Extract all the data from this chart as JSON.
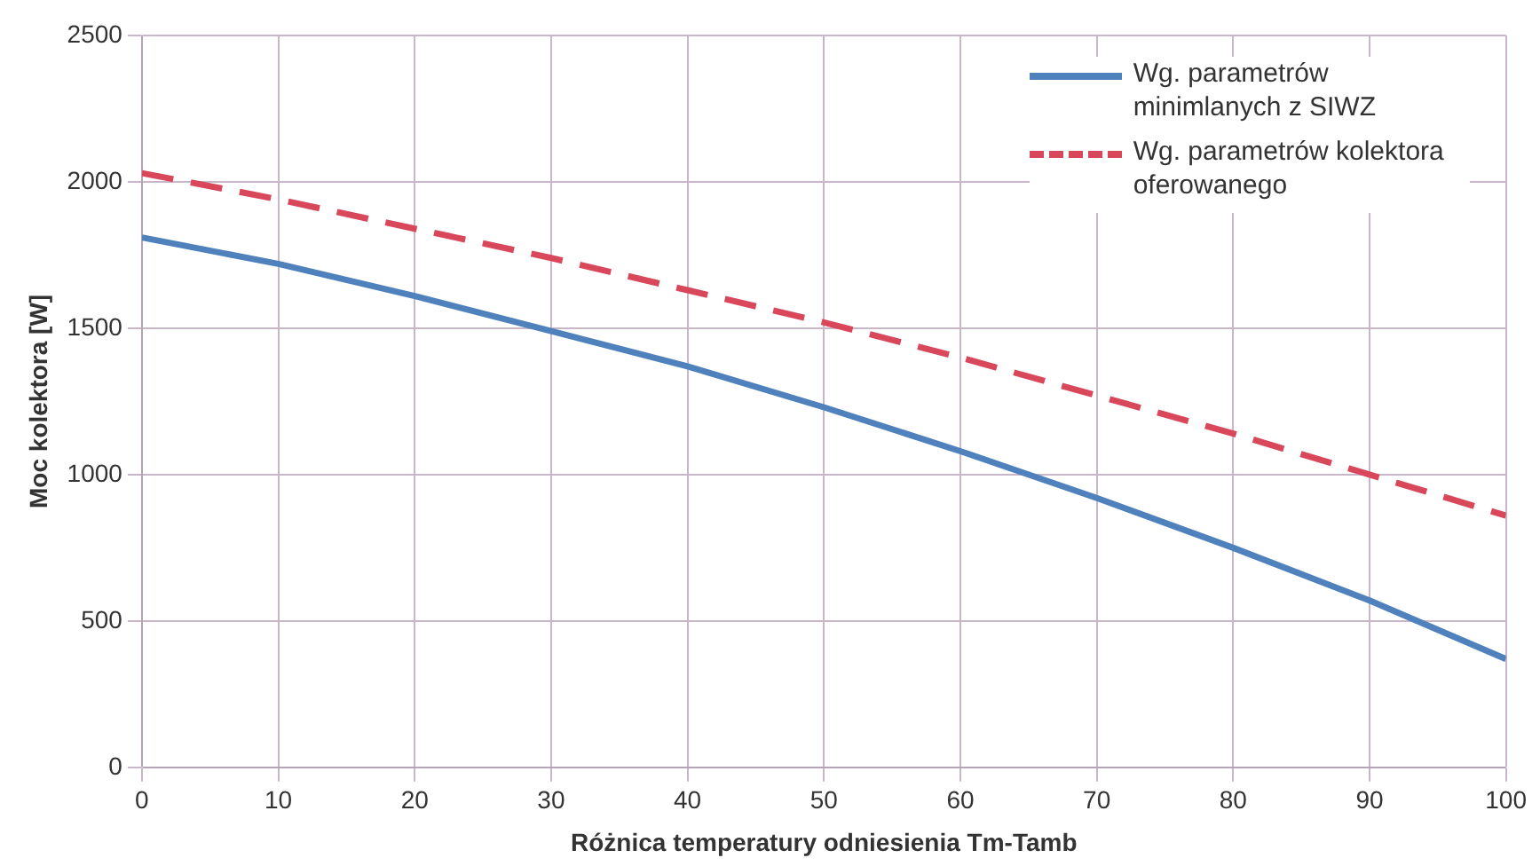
{
  "chart_data": {
    "type": "line",
    "xlabel": "Różnica temperatury odniesienia Tm-Tamb",
    "ylabel": "Moc kolektora [W]",
    "x": [
      0,
      10,
      20,
      30,
      40,
      50,
      60,
      70,
      80,
      90,
      100
    ],
    "series": [
      {
        "name": "Wg. parametrów minimlanych z SIWZ",
        "color": "#4f81bd",
        "line_style": "solid",
        "values": [
          1810,
          1720,
          1610,
          1490,
          1370,
          1230,
          1080,
          920,
          750,
          570,
          370
        ]
      },
      {
        "name": "Wg. parametrów kolektora oferowanego",
        "color": "#d9475b",
        "line_style": "dashed",
        "values": [
          2030,
          1940,
          1840,
          1740,
          1630,
          1520,
          1400,
          1270,
          1140,
          1000,
          860
        ]
      }
    ],
    "xlim": [
      0,
      100
    ],
    "xticks": [
      0,
      10,
      20,
      30,
      40,
      50,
      60,
      70,
      80,
      90,
      100
    ],
    "ylim": [
      0,
      2500
    ],
    "yticks": [
      0,
      500,
      1000,
      1500,
      2000,
      2500
    ],
    "grid": true,
    "legend": "top right",
    "marker": "none"
  }
}
